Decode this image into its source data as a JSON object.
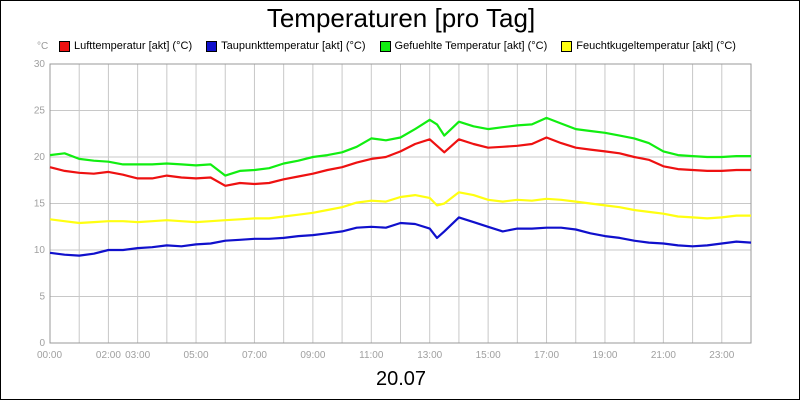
{
  "chart_data": {
    "type": "line",
    "title": "Temperaturen [pro Tag]",
    "ylabel": "°C",
    "xlabel": "20.07",
    "ylim": [
      0,
      30
    ],
    "yticks": [
      "0",
      "5",
      "10",
      "15",
      "20",
      "25",
      "30"
    ],
    "xlim": [
      0,
      24
    ],
    "x_ticks": [
      "00:00",
      "02:00",
      "03:00",
      "05:00",
      "07:00",
      "09:00",
      "11:00",
      "13:00",
      "15:00",
      "17:00",
      "19:00",
      "21:00",
      "23:00"
    ],
    "grid": true,
    "legend": "top",
    "series": [
      {
        "name": "Lufttemperatur [akt] (°C)",
        "color": "#ee1111",
        "x": [
          0,
          0.5,
          1,
          1.5,
          2,
          2.5,
          3,
          3.5,
          4,
          4.5,
          5,
          5.5,
          6,
          6.5,
          7,
          7.5,
          8,
          8.5,
          9,
          9.5,
          10,
          10.5,
          11,
          11.5,
          12,
          12.5,
          13,
          13.25,
          13.5,
          14,
          14.5,
          15,
          15.5,
          16,
          16.5,
          17,
          17.5,
          18,
          18.5,
          19,
          19.5,
          20,
          20.5,
          21,
          21.5,
          22,
          22.5,
          23,
          23.5,
          24
        ],
        "y": [
          18.9,
          18.5,
          18.3,
          18.2,
          18.4,
          18.1,
          17.7,
          17.7,
          18.0,
          17.8,
          17.7,
          17.8,
          16.9,
          17.2,
          17.1,
          17.2,
          17.6,
          17.9,
          18.2,
          18.6,
          18.9,
          19.4,
          19.8,
          20.0,
          20.6,
          21.4,
          21.9,
          21.2,
          20.5,
          21.9,
          21.4,
          21.0,
          21.1,
          21.2,
          21.4,
          22.1,
          21.5,
          21.0,
          20.8,
          20.6,
          20.4,
          20.0,
          19.7,
          19.0,
          18.7,
          18.6,
          18.5,
          18.5,
          18.6,
          18.6
        ]
      },
      {
        "name": "Taupunkttemperatur [akt] (°C)",
        "color": "#1010cc",
        "x": [
          0,
          0.5,
          1,
          1.5,
          2,
          2.5,
          3,
          3.5,
          4,
          4.5,
          5,
          5.5,
          6,
          6.5,
          7,
          7.5,
          8,
          8.5,
          9,
          9.5,
          10,
          10.5,
          11,
          11.5,
          12,
          12.5,
          13,
          13.25,
          13.5,
          14,
          14.5,
          15,
          15.5,
          16,
          16.5,
          17,
          17.5,
          18,
          18.5,
          19,
          19.5,
          20,
          20.5,
          21,
          21.5,
          22,
          22.5,
          23,
          23.5,
          24
        ],
        "y": [
          9.7,
          9.5,
          9.4,
          9.6,
          10.0,
          10.0,
          10.2,
          10.3,
          10.5,
          10.4,
          10.6,
          10.7,
          11.0,
          11.1,
          11.2,
          11.2,
          11.3,
          11.5,
          11.6,
          11.8,
          12.0,
          12.4,
          12.5,
          12.4,
          12.9,
          12.8,
          12.3,
          11.3,
          12.0,
          13.5,
          13.0,
          12.5,
          12.0,
          12.3,
          12.3,
          12.4,
          12.4,
          12.2,
          11.8,
          11.5,
          11.3,
          11.0,
          10.8,
          10.7,
          10.5,
          10.4,
          10.5,
          10.7,
          10.9,
          10.8
        ]
      },
      {
        "name": "Gefuehlte Temperatur [akt] (°C)",
        "color": "#11ee11",
        "x": [
          0,
          0.5,
          1,
          1.5,
          2,
          2.5,
          3,
          3.5,
          4,
          4.5,
          5,
          5.5,
          6,
          6.5,
          7,
          7.5,
          8,
          8.5,
          9,
          9.5,
          10,
          10.5,
          11,
          11.5,
          12,
          12.5,
          13,
          13.25,
          13.5,
          14,
          14.5,
          15,
          15.5,
          16,
          16.5,
          17,
          17.5,
          18,
          18.5,
          19,
          19.5,
          20,
          20.5,
          21,
          21.5,
          22,
          22.5,
          23,
          23.5,
          24
        ],
        "y": [
          20.2,
          20.4,
          19.8,
          19.6,
          19.5,
          19.2,
          19.2,
          19.2,
          19.3,
          19.2,
          19.1,
          19.2,
          18.0,
          18.5,
          18.6,
          18.8,
          19.3,
          19.6,
          20.0,
          20.2,
          20.5,
          21.1,
          22.0,
          21.8,
          22.1,
          23.0,
          24.0,
          23.5,
          22.3,
          23.8,
          23.3,
          23.0,
          23.2,
          23.4,
          23.5,
          24.2,
          23.6,
          23.0,
          22.8,
          22.6,
          22.3,
          22.0,
          21.5,
          20.6,
          20.2,
          20.1,
          20.0,
          20.0,
          20.1,
          20.1
        ]
      },
      {
        "name": "Feuchtkugeltemperatur [akt] (°C)",
        "color": "#ffff11",
        "x": [
          0,
          0.5,
          1,
          1.5,
          2,
          2.5,
          3,
          3.5,
          4,
          4.5,
          5,
          5.5,
          6,
          6.5,
          7,
          7.5,
          8,
          8.5,
          9,
          9.5,
          10,
          10.5,
          11,
          11.5,
          12,
          12.5,
          13,
          13.25,
          13.5,
          14,
          14.5,
          15,
          15.5,
          16,
          16.5,
          17,
          17.5,
          18,
          18.5,
          19,
          19.5,
          20,
          20.5,
          21,
          21.5,
          22,
          22.5,
          23,
          23.5,
          24
        ],
        "y": [
          13.3,
          13.1,
          12.9,
          13.0,
          13.1,
          13.1,
          13.0,
          13.1,
          13.2,
          13.1,
          13.0,
          13.1,
          13.2,
          13.3,
          13.4,
          13.4,
          13.6,
          13.8,
          14.0,
          14.3,
          14.6,
          15.1,
          15.3,
          15.2,
          15.7,
          15.9,
          15.6,
          14.8,
          15.0,
          16.2,
          15.9,
          15.4,
          15.2,
          15.4,
          15.3,
          15.5,
          15.4,
          15.2,
          15.0,
          14.8,
          14.6,
          14.3,
          14.1,
          13.9,
          13.6,
          13.5,
          13.4,
          13.5,
          13.7,
          13.7
        ]
      }
    ]
  }
}
